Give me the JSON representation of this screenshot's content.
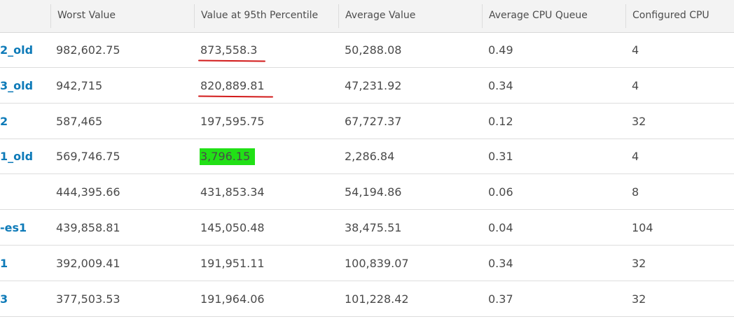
{
  "columns": [
    {
      "key": "name",
      "label": ""
    },
    {
      "key": "worst",
      "label": "Worst Value"
    },
    {
      "key": "p95",
      "label": "Value at 95th Percentile"
    },
    {
      "key": "avg",
      "label": "Average Value"
    },
    {
      "key": "cpuq",
      "label": "Average CPU Queue"
    },
    {
      "key": "cpu",
      "label": "Configured CPU"
    }
  ],
  "rows": [
    {
      "name": "2_old",
      "worst": "982,602.75",
      "p95": "873,558.3",
      "avg": "50,288.08",
      "cpuq": "0.49",
      "cpu": "4",
      "p95_mark": "underline"
    },
    {
      "name": "3_old",
      "worst": "942,715",
      "p95": "820,889.81",
      "avg": "47,231.92",
      "cpuq": "0.34",
      "cpu": "4",
      "p95_mark": "underline"
    },
    {
      "name": "2",
      "worst": "587,465",
      "p95": "197,595.75",
      "avg": "67,727.37",
      "cpuq": "0.12",
      "cpu": "32",
      "p95_mark": ""
    },
    {
      "name": "1_old",
      "worst": "569,746.75",
      "p95": "3,796.15",
      "avg": "2,286.84",
      "cpuq": "0.31",
      "cpu": "4",
      "p95_mark": "highlight"
    },
    {
      "name": "",
      "worst": "444,395.66",
      "p95": "431,853.34",
      "avg": "54,194.86",
      "cpuq": "0.06",
      "cpu": "8",
      "p95_mark": ""
    },
    {
      "name": "-es1",
      "worst": "439,858.81",
      "p95": "145,050.48",
      "avg": "38,475.51",
      "cpuq": "0.04",
      "cpu": "104",
      "p95_mark": ""
    },
    {
      "name": "1",
      "worst": "392,009.41",
      "p95": "191,951.11",
      "avg": "100,839.07",
      "cpuq": "0.34",
      "cpu": "32",
      "p95_mark": ""
    },
    {
      "name": "3",
      "worst": "377,503.53",
      "p95": "191,964.06",
      "avg": "101,228.42",
      "cpuq": "0.37",
      "cpu": "32",
      "p95_mark": ""
    }
  ],
  "colors": {
    "link": "#0d7ab8",
    "header_bg": "#f3f3f3",
    "underline_mark": "#d21a1a",
    "highlight_mark": "#21e016"
  }
}
